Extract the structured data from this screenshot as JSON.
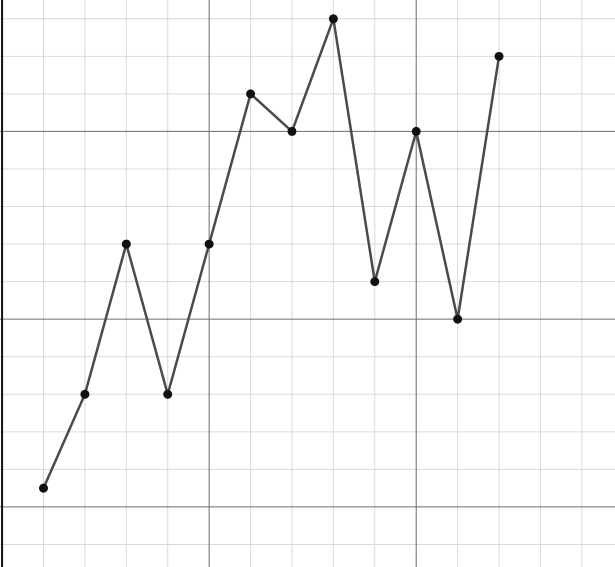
{
  "chart_data": {
    "type": "line",
    "title": "",
    "xlabel": "",
    "ylabel": "",
    "x": [
      1,
      2,
      3,
      4,
      5,
      6,
      7,
      8,
      9,
      10,
      11,
      12
    ],
    "series": [
      {
        "values": [
          5.5,
          8,
          12,
          8,
          12,
          16,
          15,
          18,
          11,
          15,
          10,
          17
        ]
      }
    ],
    "xlim": [
      -0.05,
      14.8
    ],
    "ylim": [
      3.4,
      18.5
    ],
    "y_ticks": [
      "5",
      "10",
      "15"
    ],
    "grid": true,
    "legend": "none",
    "colors": {
      "line": "#4a4a4a",
      "marker": "#111111",
      "major_grid": "#6b6b6b",
      "minor_grid": "#d9d9d9",
      "axis": "#111111"
    }
  }
}
